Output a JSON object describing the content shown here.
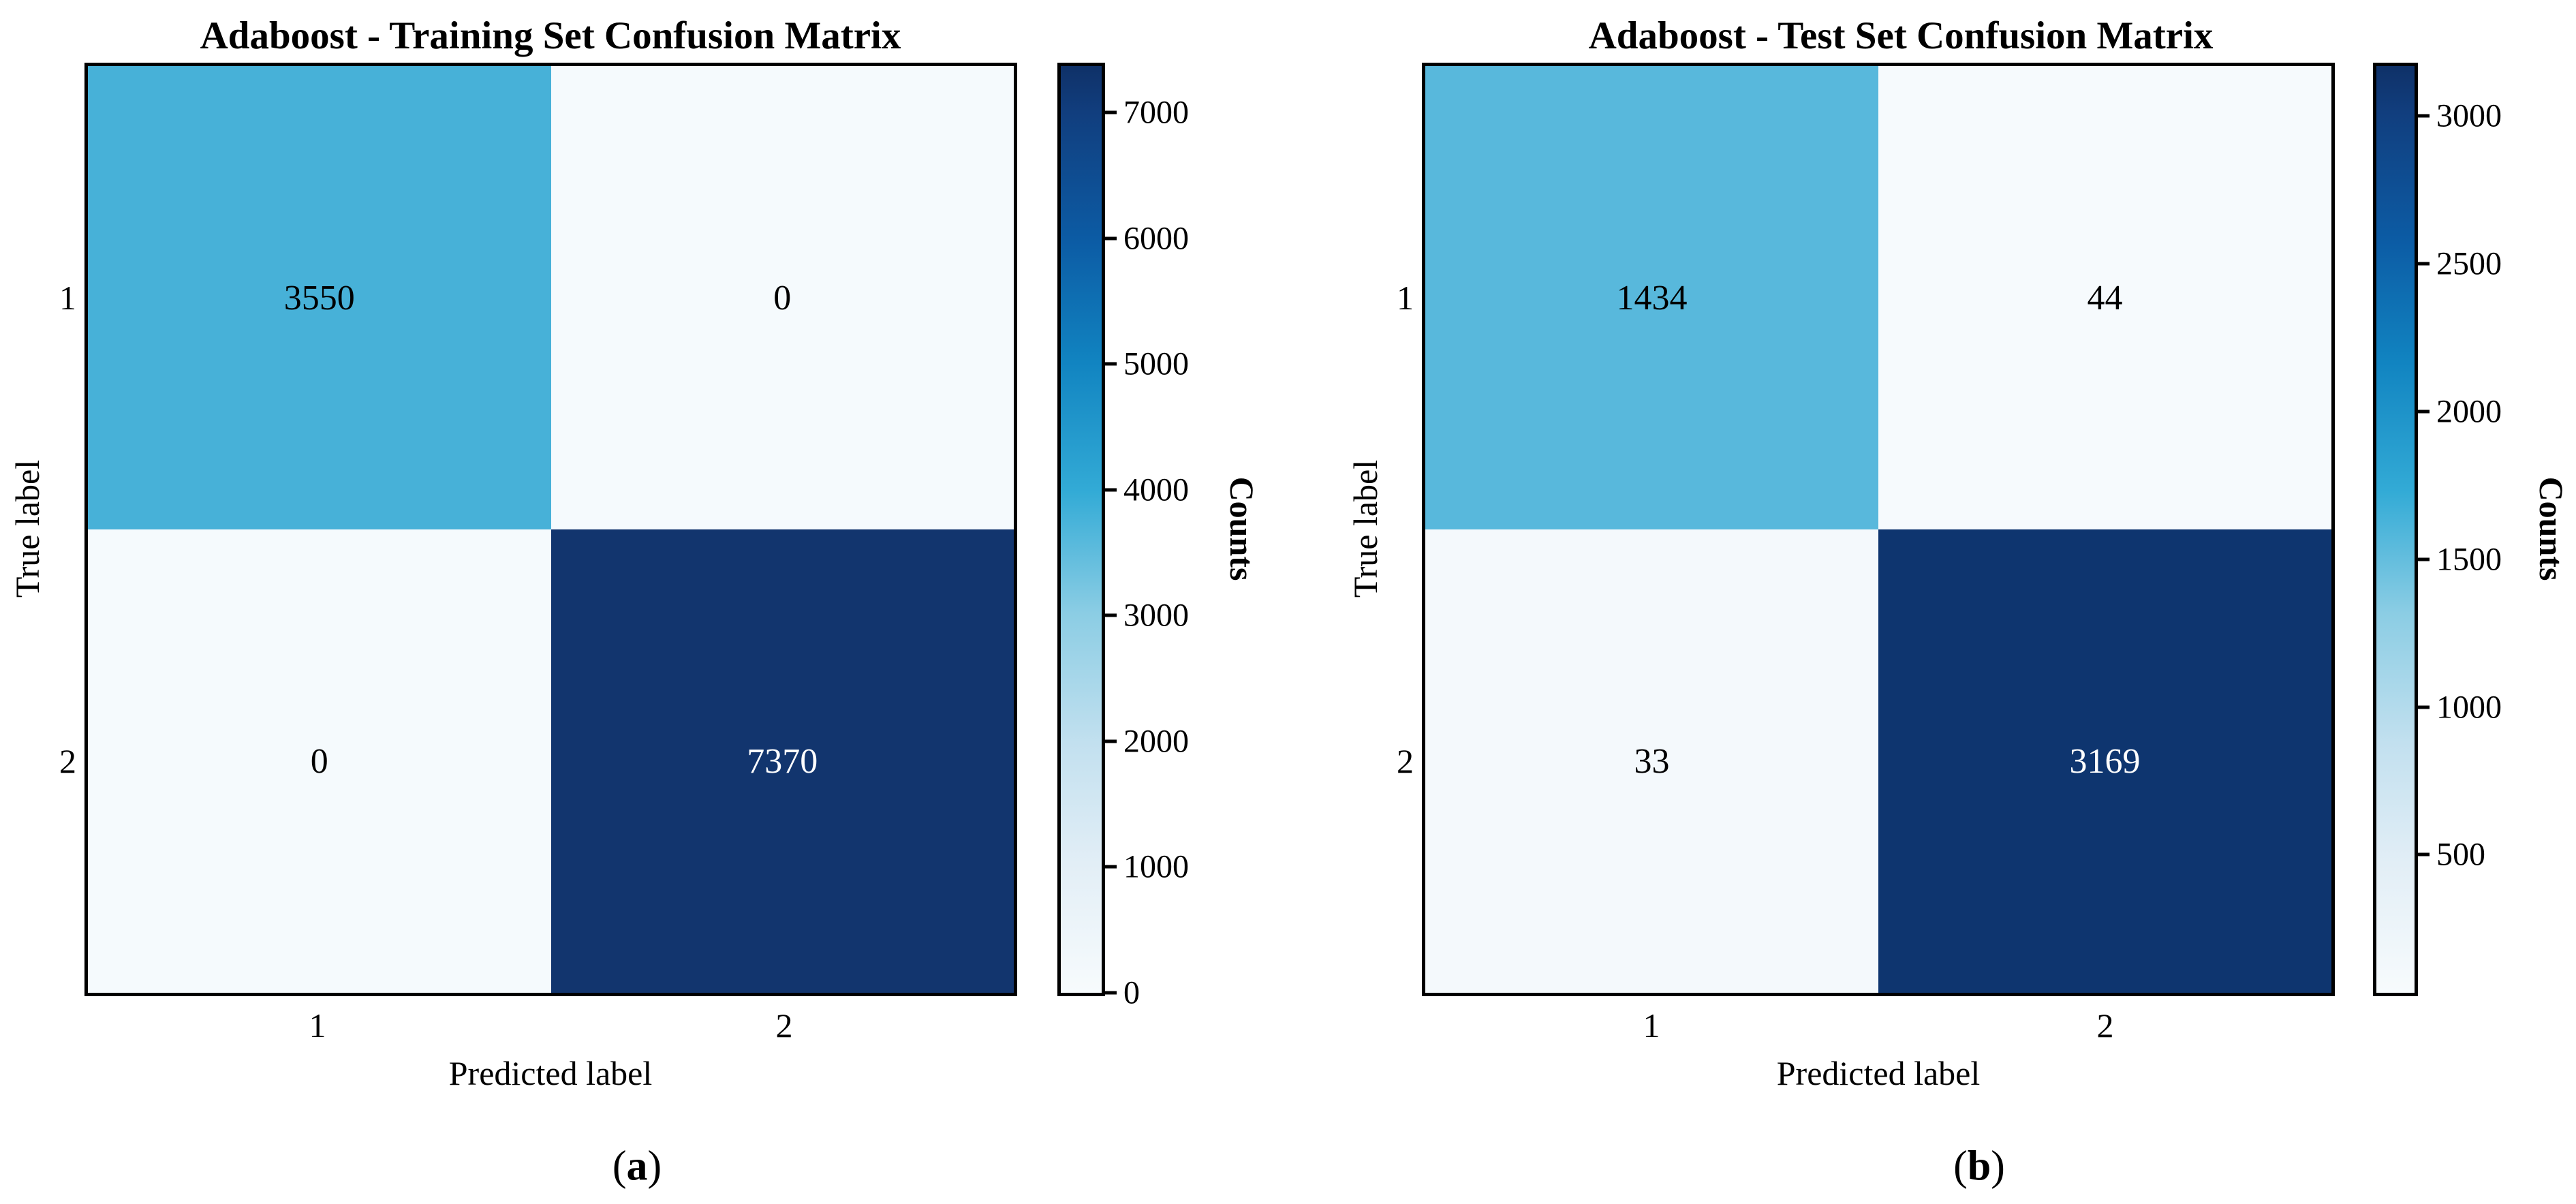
{
  "colormap": {
    "stops": [
      [
        "0%",
        "#f7fbfd"
      ],
      [
        "14%",
        "#e2eef6"
      ],
      [
        "27%",
        "#c2e0ef"
      ],
      [
        "41%",
        "#8bcde4"
      ],
      [
        "54%",
        "#33abd6"
      ],
      [
        "68%",
        "#1184c1"
      ],
      [
        "81%",
        "#0c5ca5"
      ],
      [
        "95%",
        "#113e7e"
      ],
      [
        "100%",
        "#0f3168"
      ]
    ]
  },
  "chart_data": [
    {
      "type": "heatmap",
      "title": "Adaboost - Training Set Confusion Matrix",
      "xlabel": "Predicted label",
      "ylabel": "True label",
      "x_categories": [
        "1",
        "2"
      ],
      "y_categories": [
        "1",
        "2"
      ],
      "matrix": [
        [
          3550,
          0
        ],
        [
          0,
          7370
        ]
      ],
      "cell_colors": [
        [
          "#47b1d8",
          "#f5fafd"
        ],
        [
          "#f5fafd",
          "#12356e"
        ]
      ],
      "vmin": 0,
      "vmax": 7370,
      "colorbar_label": "Counts",
      "colorbar_ticks": [
        0,
        1000,
        2000,
        3000,
        4000,
        5000,
        6000,
        7000
      ],
      "legend_position": "right-colorbar",
      "grid": false,
      "caption_prefix": "(",
      "caption_letter": "a",
      "caption_suffix": ")"
    },
    {
      "type": "heatmap",
      "title": "Adaboost - Test Set Confusion Matrix",
      "xlabel": "Predicted label",
      "ylabel": "True label",
      "x_categories": [
        "1",
        "2"
      ],
      "y_categories": [
        "1",
        "2"
      ],
      "matrix": [
        [
          1434,
          44
        ],
        [
          33,
          3169
        ]
      ],
      "cell_colors": [
        [
          "#58b8dc",
          "#f6fafd"
        ],
        [
          "#f4f9fc",
          "#0e356f"
        ]
      ],
      "vmin": 33,
      "vmax": 3169,
      "colorbar_label": "Counts",
      "colorbar_ticks": [
        500,
        1000,
        1500,
        2000,
        2500,
        3000
      ],
      "legend_position": "right-colorbar",
      "grid": false,
      "caption_prefix": "(",
      "caption_letter": "b",
      "caption_suffix": ")"
    }
  ]
}
